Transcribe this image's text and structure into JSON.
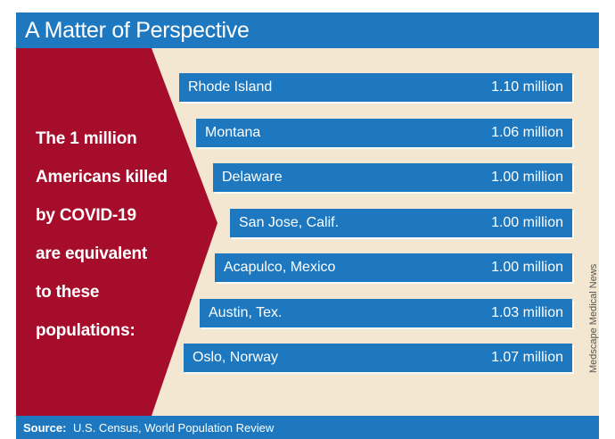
{
  "header": {
    "title": "A Matter of Perspective"
  },
  "intro": {
    "lines": [
      "The 1 million",
      "Americans killed",
      "by COVID-19",
      "are equivalent",
      "to these",
      "populations:"
    ]
  },
  "footer": {
    "source_label": "Source:",
    "source_text": "U.S. Census, World Population Review"
  },
  "credit": "Medscape Medical News",
  "colors": {
    "blue": "#1d78bf",
    "red": "#a50d2b",
    "beige": "#f3e7d1"
  },
  "chart_data": {
    "type": "table",
    "title": "A Matter of Perspective",
    "unit": "million",
    "rows": [
      {
        "name": "Rhode Island",
        "value": 1.1,
        "label": "1.10 million"
      },
      {
        "name": "Montana",
        "value": 1.06,
        "label": "1.06 million"
      },
      {
        "name": "Delaware",
        "value": 1.0,
        "label": "1.00 million"
      },
      {
        "name": "San Jose, Calif.",
        "value": 1.0,
        "label": "1.00 million"
      },
      {
        "name": "Acapulco, Mexico",
        "value": 1.0,
        "label": "1.00 million"
      },
      {
        "name": "Austin, Tex.",
        "value": 1.03,
        "label": "1.03 million"
      },
      {
        "name": "Oslo, Norway",
        "value": 1.07,
        "label": "1.07 million"
      }
    ]
  }
}
